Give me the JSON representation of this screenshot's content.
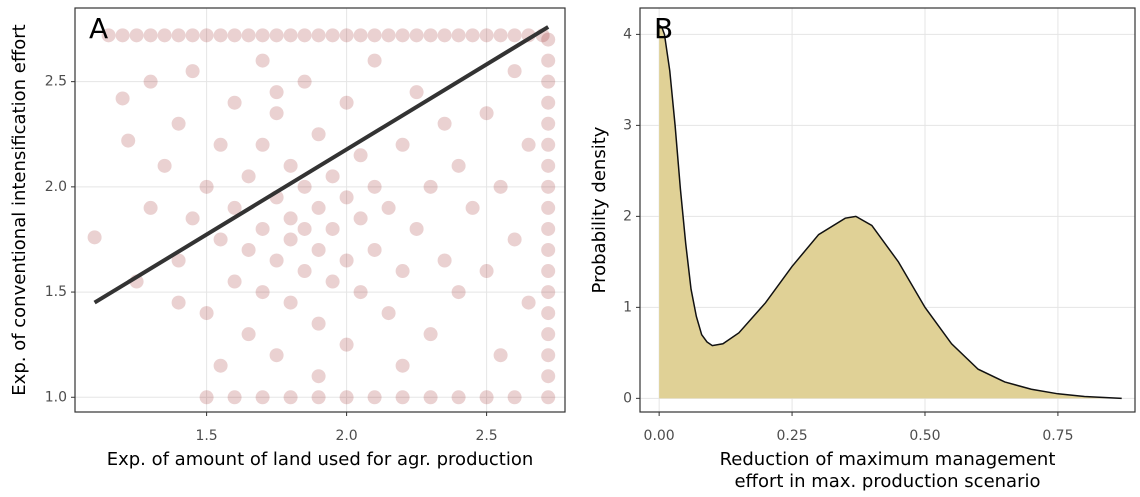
{
  "chart_data": [
    {
      "type": "scatter",
      "panel_label": "A",
      "x_label": "Exp. of amount of land used for agr. production",
      "y_label": "Exp. of conventional intensification effort",
      "color": "#8b0000",
      "point_opacity": 0.18,
      "grid": true,
      "xlim": [
        1.03,
        2.78
      ],
      "ylim": [
        0.93,
        2.85
      ],
      "xticks": [
        {
          "value": 1.5,
          "label": "1.5"
        },
        {
          "value": 2,
          "label": "2.0"
        },
        2.5
      ],
      "yticks": [
        {
          "value": 1,
          "label": "1.0"
        },
        1.5,
        {
          "value": 2,
          "label": "2.0"
        },
        2.5
      ],
      "x": [
        1.15,
        1.2,
        1.25,
        1.3,
        1.35,
        1.4,
        1.45,
        1.5,
        1.55,
        1.6,
        1.65,
        1.7,
        1.75,
        1.8,
        1.85,
        1.9,
        1.95,
        2.0,
        2.05,
        2.1,
        2.15,
        2.2,
        2.25,
        2.3,
        2.35,
        2.4,
        2.45,
        2.5,
        2.55,
        2.6,
        2.65,
        2.7,
        2.72,
        2.72,
        2.72,
        2.72,
        2.72,
        2.72,
        2.72,
        2.72,
        2.72,
        2.72,
        2.72,
        2.72,
        2.72,
        2.72,
        2.72,
        2.72,
        2.72,
        2.72,
        1.5,
        1.6,
        1.7,
        1.8,
        1.9,
        2.0,
        2.1,
        2.2,
        2.3,
        2.4,
        2.5,
        2.6,
        1.1,
        1.2,
        1.22,
        1.25,
        1.3,
        1.3,
        1.35,
        1.4,
        1.4,
        1.45,
        1.45,
        1.5,
        1.5,
        1.55,
        1.55,
        1.6,
        1.6,
        1.6,
        1.65,
        1.65,
        1.65,
        1.7,
        1.7,
        1.7,
        1.7,
        1.75,
        1.75,
        1.75,
        1.75,
        1.8,
        1.8,
        1.8,
        1.8,
        1.85,
        1.85,
        1.85,
        1.85,
        1.9,
        1.9,
        1.9,
        1.9,
        1.95,
        1.95,
        1.95,
        2.0,
        2.0,
        2.0,
        2.0,
        2.05,
        2.05,
        2.05,
        2.1,
        2.1,
        2.1,
        2.15,
        2.15,
        2.2,
        2.2,
        2.25,
        2.25,
        2.3,
        2.3,
        2.35,
        2.35,
        2.4,
        2.4,
        2.45,
        2.5,
        2.5,
        2.55,
        2.55,
        2.6,
        2.6,
        2.65,
        2.65,
        1.55,
        1.9,
        2.2,
        1.4,
        1.75
      ],
      "y": [
        2.72,
        2.72,
        2.72,
        2.72,
        2.72,
        2.72,
        2.72,
        2.72,
        2.72,
        2.72,
        2.72,
        2.72,
        2.72,
        2.72,
        2.72,
        2.72,
        2.72,
        2.72,
        2.72,
        2.72,
        2.72,
        2.72,
        2.72,
        2.72,
        2.72,
        2.72,
        2.72,
        2.72,
        2.72,
        2.72,
        2.72,
        2.72,
        1.0,
        1.1,
        1.2,
        1.3,
        1.4,
        1.5,
        1.6,
        1.7,
        1.8,
        1.9,
        2.0,
        2.1,
        2.2,
        2.3,
        2.4,
        2.5,
        2.6,
        2.7,
        1.0,
        1.0,
        1.0,
        1.0,
        1.0,
        1.0,
        1.0,
        1.0,
        1.0,
        1.0,
        1.0,
        1.0,
        1.76,
        2.42,
        2.22,
        1.55,
        1.9,
        2.5,
        2.1,
        1.65,
        2.3,
        1.85,
        2.55,
        1.4,
        2.0,
        1.75,
        2.2,
        1.55,
        1.9,
        2.4,
        1.3,
        1.7,
        2.05,
        1.5,
        1.8,
        2.2,
        2.6,
        1.2,
        1.65,
        1.95,
        2.35,
        1.45,
        1.75,
        1.85,
        2.1,
        1.6,
        1.8,
        2.0,
        2.5,
        1.35,
        1.7,
        1.9,
        2.25,
        1.55,
        1.8,
        2.05,
        1.25,
        1.65,
        1.95,
        2.4,
        1.5,
        1.85,
        2.15,
        1.7,
        2.0,
        2.6,
        1.4,
        1.9,
        1.6,
        2.2,
        1.8,
        2.45,
        1.3,
        2.0,
        1.65,
        2.3,
        1.5,
        2.1,
        1.9,
        1.6,
        2.35,
        1.2,
        2.0,
        1.75,
        2.55,
        1.45,
        2.2,
        1.15,
        1.1,
        1.15,
        1.45,
        2.45
      ],
      "trend_line": {
        "x": [
          1.1,
          2.72
        ],
        "y": [
          1.45,
          2.76
        ],
        "color": "#333333"
      }
    },
    {
      "type": "area",
      "panel_label": "B",
      "x_label": [
        "Reduction of maximum management",
        "effort in max. production scenario"
      ],
      "y_label": "Probability density",
      "color": "#e0d196",
      "line_color": "#111111",
      "grid": true,
      "xlim": [
        -0.036,
        0.895
      ],
      "ylim": [
        -0.15,
        4.29
      ],
      "xticks": [
        {
          "value": 0,
          "label": "0.00"
        },
        0.25,
        {
          "value": 0.5,
          "label": "0.50"
        },
        0.75
      ],
      "yticks": [
        0,
        1,
        2,
        3,
        4
      ],
      "x": [
        0,
        0.005,
        0.01,
        0.02,
        0.03,
        0.04,
        0.05,
        0.06,
        0.07,
        0.08,
        0.09,
        0.1,
        0.12,
        0.15,
        0.2,
        0.25,
        0.3,
        0.35,
        0.37,
        0.4,
        0.45,
        0.5,
        0.55,
        0.6,
        0.65,
        0.7,
        0.75,
        0.8,
        0.87
      ],
      "values": [
        4.1,
        4.08,
        4.0,
        3.6,
        3.0,
        2.3,
        1.7,
        1.2,
        0.9,
        0.7,
        0.62,
        0.58,
        0.6,
        0.72,
        1.05,
        1.45,
        1.8,
        1.98,
        2.0,
        1.9,
        1.5,
        1.0,
        0.6,
        0.32,
        0.18,
        0.1,
        0.05,
        0.02,
        0.0
      ]
    }
  ]
}
